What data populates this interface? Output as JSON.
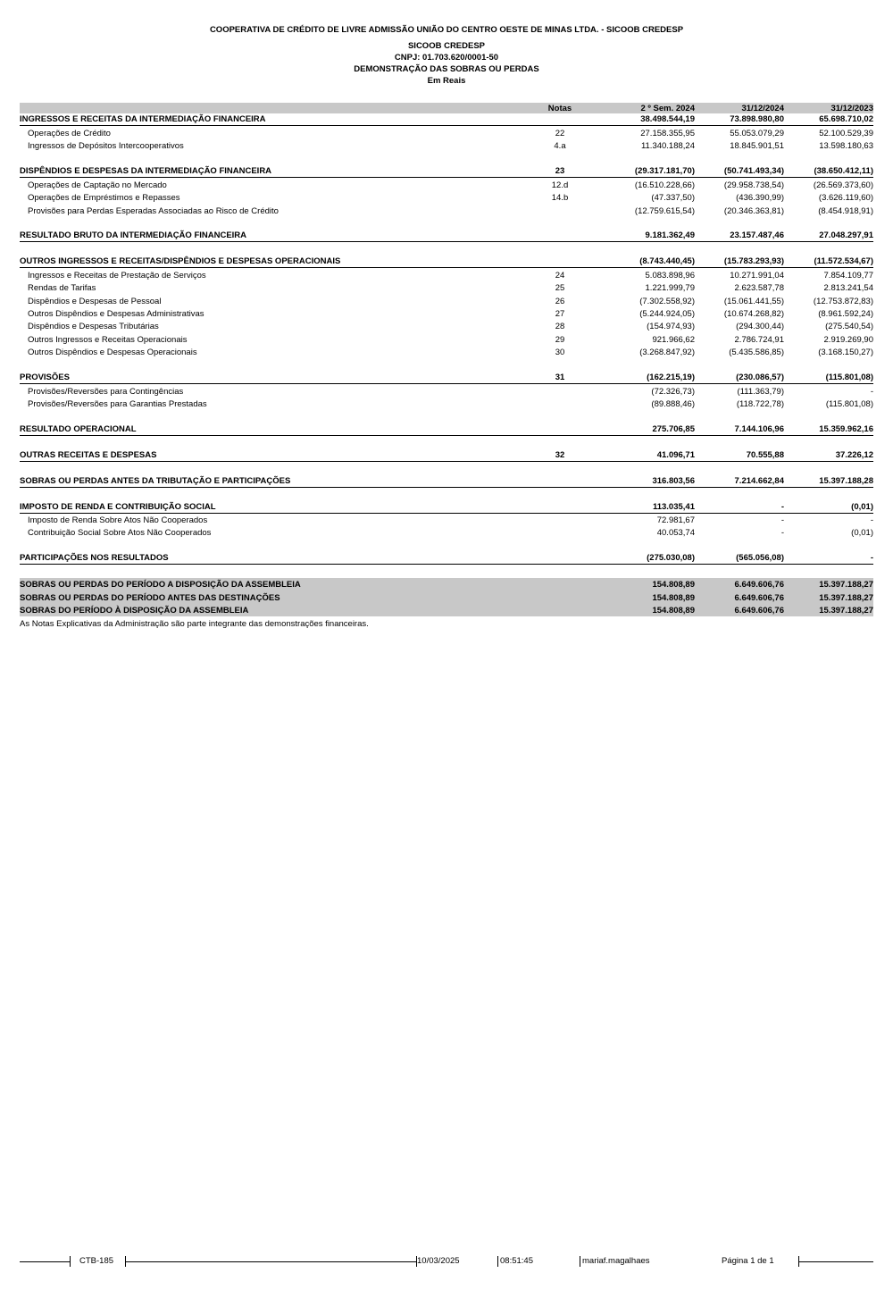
{
  "header": {
    "company": "COOPERATIVA DE CRÉDITO DE LIVRE ADMISSÃO UNIÃO DO CENTRO OESTE DE MINAS LTDA. - SICOOB CREDESP",
    "short_name": "SICOOB CREDESP",
    "cnpj": "CNPJ: 01.703.620/0001-50",
    "title": "DEMONSTRAÇÃO DAS SOBRAS OU PERDAS",
    "unit": "Em Reais"
  },
  "columns": {
    "notas": "Notas",
    "c1": "2 º Sem. 2024",
    "c2": "31/12/2024",
    "c3": "31/12/2023"
  },
  "rows": [
    {
      "type": "section",
      "label": "INGRESSOS E RECEITAS DA INTERMEDIAÇÃO FINANCEIRA",
      "notas": "",
      "c1": "38.498.544,19",
      "c2": "73.898.980,80",
      "c3": "65.698.710,02"
    },
    {
      "type": "item",
      "label": "Operações de Crédito",
      "notas": "22",
      "c1": "27.158.355,95",
      "c2": "55.053.079,29",
      "c3": "52.100.529,39"
    },
    {
      "type": "item",
      "label": "Ingressos de Depósitos Intercooperativos",
      "notas": "4.a",
      "c1": "11.340.188,24",
      "c2": "18.845.901,51",
      "c3": "13.598.180,63"
    },
    {
      "type": "blank"
    },
    {
      "type": "section",
      "label": "DISPÊNDIOS E DESPESAS DA INTERMEDIAÇÃO FINANCEIRA",
      "notas": "23",
      "c1": "(29.317.181,70)",
      "c2": "(50.741.493,34)",
      "c3": "(38.650.412,11)"
    },
    {
      "type": "item",
      "label": "Operações de Captação no Mercado",
      "notas": "12.d",
      "c1": "(16.510.228,66)",
      "c2": "(29.958.738,54)",
      "c3": "(26.569.373,60)"
    },
    {
      "type": "item",
      "label": "Operações de Empréstimos e Repasses",
      "notas": "14.b",
      "c1": "(47.337,50)",
      "c2": "(436.390,99)",
      "c3": "(3.626.119,60)"
    },
    {
      "type": "item",
      "label": "Provisões para Perdas Esperadas Associadas ao Risco de Crédito",
      "notas": "",
      "c1": "(12.759.615,54)",
      "c2": "(20.346.363,81)",
      "c3": "(8.454.918,91)"
    },
    {
      "type": "blank"
    },
    {
      "type": "section",
      "label": "RESULTADO BRUTO DA INTERMEDIAÇÃO FINANCEIRA",
      "notas": "",
      "c1": "9.181.362,49",
      "c2": "23.157.487,46",
      "c3": "27.048.297,91"
    },
    {
      "type": "blank"
    },
    {
      "type": "section",
      "label": "OUTROS INGRESSOS E RECEITAS/DISPÊNDIOS E DESPESAS OPERACIONAIS",
      "notas": "",
      "c1": "(8.743.440,45)",
      "c2": "(15.783.293,93)",
      "c3": "(11.572.534,67)"
    },
    {
      "type": "item",
      "label": "Ingressos e Receitas de Prestação de Serviços",
      "notas": "24",
      "c1": "5.083.898,96",
      "c2": "10.271.991,04",
      "c3": "7.854.109,77"
    },
    {
      "type": "item",
      "label": "Rendas de Tarifas",
      "notas": "25",
      "c1": "1.221.999,79",
      "c2": "2.623.587,78",
      "c3": "2.813.241,54"
    },
    {
      "type": "item",
      "label": "Dispêndios e Despesas de Pessoal",
      "notas": "26",
      "c1": "(7.302.558,92)",
      "c2": "(15.061.441,55)",
      "c3": "(12.753.872,83)"
    },
    {
      "type": "item",
      "label": "Outros Dispêndios e Despesas Administrativas",
      "notas": "27",
      "c1": "(5.244.924,05)",
      "c2": "(10.674.268,82)",
      "c3": "(8.961.592,24)"
    },
    {
      "type": "item",
      "label": "Dispêndios e Despesas Tributárias",
      "notas": "28",
      "c1": "(154.974,93)",
      "c2": "(294.300,44)",
      "c3": "(275.540,54)"
    },
    {
      "type": "item",
      "label": "Outros Ingressos e Receitas Operacionais",
      "notas": "29",
      "c1": "921.966,62",
      "c2": "2.786.724,91",
      "c3": "2.919.269,90"
    },
    {
      "type": "item",
      "label": "Outros Dispêndios e Despesas Operacionais",
      "notas": "30",
      "c1": "(3.268.847,92)",
      "c2": "(5.435.586,85)",
      "c3": "(3.168.150,27)"
    },
    {
      "type": "blank"
    },
    {
      "type": "section",
      "label": "PROVISÕES",
      "notas": "31",
      "c1": "(162.215,19)",
      "c2": "(230.086,57)",
      "c3": "(115.801,08)"
    },
    {
      "type": "item",
      "label": "Provisões/Reversões para Contingências",
      "notas": "",
      "c1": "(72.326,73)",
      "c2": "(111.363,79)",
      "c3": "-"
    },
    {
      "type": "item",
      "label": "Provisões/Reversões para Garantias Prestadas",
      "notas": "",
      "c1": "(89.888,46)",
      "c2": "(118.722,78)",
      "c3": "(115.801,08)"
    },
    {
      "type": "blank"
    },
    {
      "type": "section",
      "label": "RESULTADO OPERACIONAL",
      "notas": "",
      "c1": "275.706,85",
      "c2": "7.144.106,96",
      "c3": "15.359.962,16"
    },
    {
      "type": "blank"
    },
    {
      "type": "section",
      "label": "OUTRAS RECEITAS E DESPESAS",
      "notas": "32",
      "c1": "41.096,71",
      "c2": "70.555,88",
      "c3": "37.226,12"
    },
    {
      "type": "blank"
    },
    {
      "type": "section",
      "label": "SOBRAS OU PERDAS ANTES DA TRIBUTAÇÃO E PARTICIPAÇÕES",
      "notas": "",
      "c1": "316.803,56",
      "c2": "7.214.662,84",
      "c3": "15.397.188,28"
    },
    {
      "type": "blank"
    },
    {
      "type": "section",
      "label": "IMPOSTO DE RENDA E CONTRIBUIÇÃO SOCIAL",
      "notas": "",
      "c1": "113.035,41",
      "c2": "-",
      "c3": "(0,01)"
    },
    {
      "type": "item",
      "label": "Imposto de Renda Sobre Atos Não Cooperados",
      "notas": "",
      "c1": "72.981,67",
      "c2": "-",
      "c3": "-"
    },
    {
      "type": "item",
      "label": "Contribuição Social Sobre Atos Não Cooperados",
      "notas": "",
      "c1": "40.053,74",
      "c2": "-",
      "c3": "(0,01)"
    },
    {
      "type": "blank"
    },
    {
      "type": "section",
      "label": "PARTICIPAÇÕES NOS RESULTADOS",
      "notas": "",
      "c1": "(275.030,08)",
      "c2": "(565.056,08)",
      "c3": "-"
    },
    {
      "type": "blank"
    },
    {
      "type": "total",
      "label": "SOBRAS OU PERDAS DO PERÍODO A DISPOSIÇÃO DA ASSEMBLEIA",
      "notas": "",
      "c1": "154.808,89",
      "c2": "6.649.606,76",
      "c3": "15.397.188,27"
    },
    {
      "type": "total",
      "label": "SOBRAS OU PERDAS DO PERÍODO ANTES DAS DESTINAÇÕES",
      "notas": "",
      "c1": "154.808,89",
      "c2": "6.649.606,76",
      "c3": "15.397.188,27"
    },
    {
      "type": "total",
      "label": "SOBRAS DO PERÍODO À DISPOSIÇÃO DA ASSEMBLEIA",
      "notas": "",
      "c1": "154.808,89",
      "c2": "6.649.606,76",
      "c3": "15.397.188,27"
    },
    {
      "type": "note",
      "label": "As Notas Explicativas da Administração são parte integrante das demonstrações financeiras."
    }
  ],
  "footer": {
    "report_code": "CTB-185",
    "date": "10/03/2025",
    "time": "08:51:45",
    "user": "mariaf.magalhaes",
    "page": "Página 1 de  1"
  }
}
